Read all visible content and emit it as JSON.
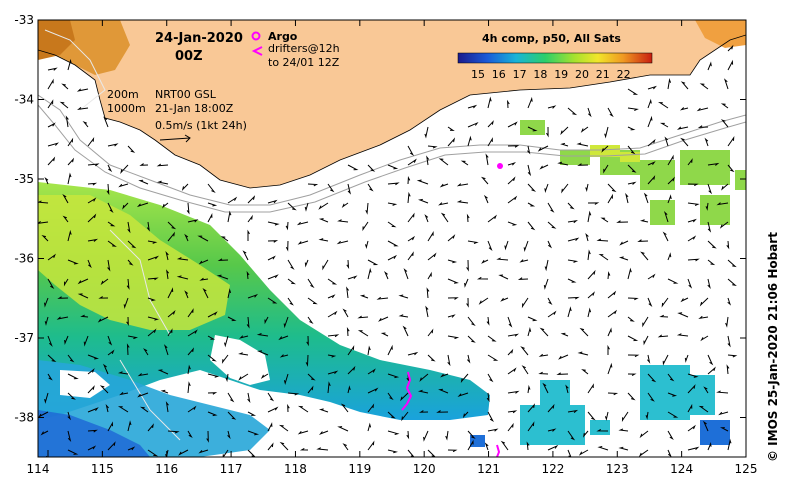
{
  "map": {
    "date": "24-Jan-2020",
    "time": "00Z",
    "argo_label": "Argo",
    "drifters_label": "drifters@12h",
    "drifters_sub": "to 24/01 12Z",
    "contour_200": "200m",
    "contour_1000": "1000m",
    "altimetry": "NRT00 GSL",
    "altimetry_date": "21-Jan 18:00Z",
    "vector_scale": "0.5m/s (1kt 24h)",
    "colorbar_title": "4h comp, p50, All Sats",
    "colorbar_ticks": [
      "15",
      "16",
      "17",
      "18",
      "19",
      "20",
      "21",
      "22"
    ],
    "credit": "© IMOS 25-Jan-2020 21:06 Hobart",
    "x_ticks": [
      "114",
      "115",
      "116",
      "117",
      "118",
      "119",
      "120",
      "121",
      "122",
      "123",
      "124",
      "125"
    ],
    "y_ticks": [
      "-33",
      "-34",
      "-35",
      "-36",
      "-37",
      "-38"
    ],
    "colors": {
      "land": "#f9c896",
      "argo": "#ff00ff",
      "drifter": "#ff00ff"
    }
  }
}
